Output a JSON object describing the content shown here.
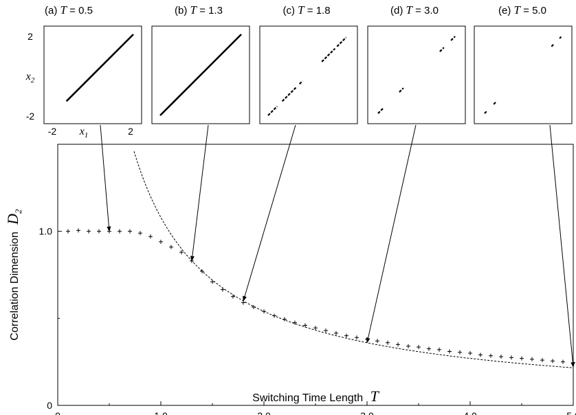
{
  "chart_data": [
    {
      "panel_id": "a",
      "type": "scatter",
      "label_prefix": "(a) ",
      "label_var": "T",
      "label_value": " = 0.5",
      "T": 0.5,
      "xlim": [
        -2,
        2
      ],
      "ylim": [
        -2,
        2
      ],
      "x_ticks": [
        "-2",
        "2"
      ],
      "y_ticks": [
        "2",
        "-2"
      ],
      "xlabel": "x",
      "xlabel_sub": "1",
      "ylabel": "x",
      "ylabel_sub": "2",
      "segments": [
        [
          -1.3,
          2.0
        ]
      ]
    },
    {
      "panel_id": "b",
      "type": "scatter",
      "label_prefix": "(b) ",
      "label_var": "T",
      "label_value": " = 1.3",
      "T": 1.3,
      "xlim": [
        -2,
        2
      ],
      "ylim": [
        -2,
        2
      ],
      "segments": [
        [
          -2.0,
          2.0
        ]
      ]
    },
    {
      "panel_id": "c",
      "type": "scatter",
      "label_prefix": "(c) ",
      "label_var": "T",
      "label_value": " = 1.8",
      "T": 1.8,
      "xlim": [
        -2,
        2
      ],
      "ylim": [
        -2,
        2
      ],
      "segments": [
        [
          -2.0,
          -1.55
        ],
        [
          -1.3,
          -0.6
        ],
        [
          -0.45,
          -0.3
        ],
        [
          0.65,
          1.3
        ],
        [
          1.4,
          1.85
        ]
      ]
    },
    {
      "panel_id": "d",
      "type": "scatter",
      "label_prefix": "(d) ",
      "label_var": "T",
      "label_value": " = 3.0",
      "T": 3.0,
      "xlim": [
        -2,
        2
      ],
      "ylim": [
        -2,
        2
      ],
      "segments": [
        [
          -1.9,
          -1.65
        ],
        [
          -0.85,
          -0.65
        ],
        [
          1.15,
          1.35
        ],
        [
          1.7,
          1.9
        ]
      ]
    },
    {
      "panel_id": "e",
      "type": "scatter",
      "label_prefix": "(e) ",
      "label_var": "T",
      "label_value": " = 5.0",
      "T": 5.0,
      "xlim": [
        -2,
        2
      ],
      "ylim": [
        -2,
        2
      ],
      "segments": [
        [
          -1.9,
          -1.78
        ],
        [
          -1.45,
          -1.35
        ],
        [
          1.4,
          1.5
        ],
        [
          1.8,
          1.88
        ]
      ]
    },
    {
      "panel_id": "main",
      "type": "scatter",
      "xlabel": "Switching Time Length",
      "xlabel_var": "T",
      "ylabel": "Correlation Dimension",
      "ylabel_var": "D",
      "ylabel_sub": "2",
      "xlim": [
        0,
        5
      ],
      "ylim": [
        0,
        1.5
      ],
      "x_ticks": [
        {
          "v": 0,
          "label": "0"
        },
        {
          "v": 1,
          "label": "1.0"
        },
        {
          "v": 2,
          "label": "2.0"
        },
        {
          "v": 3,
          "label": "3.0"
        },
        {
          "v": 4,
          "label": "4.0"
        },
        {
          "v": 5,
          "label": "5.0"
        }
      ],
      "y_ticks": [
        {
          "v": 0,
          "label": "0"
        },
        {
          "v": 1,
          "label": "1.0"
        }
      ],
      "points": {
        "x": [
          0.1,
          0.2,
          0.3,
          0.4,
          0.5,
          0.6,
          0.7,
          0.8,
          0.9,
          1.0,
          1.1,
          1.2,
          1.3,
          1.4,
          1.5,
          1.6,
          1.7,
          1.8,
          1.9,
          2.0,
          2.1,
          2.2,
          2.3,
          2.4,
          2.5,
          2.6,
          2.7,
          2.8,
          2.9,
          3.0,
          3.1,
          3.2,
          3.3,
          3.4,
          3.5,
          3.6,
          3.7,
          3.8,
          3.9,
          4.0,
          4.1,
          4.2,
          4.3,
          4.4,
          4.5,
          4.6,
          4.7,
          4.8,
          4.9,
          5.0
        ],
        "y": [
          1.0,
          1.005,
          1.0,
          1.0,
          1.0,
          1.0,
          1.0,
          0.99,
          0.97,
          0.94,
          0.91,
          0.88,
          0.83,
          0.77,
          0.71,
          0.665,
          0.625,
          0.59,
          0.565,
          0.54,
          0.515,
          0.495,
          0.475,
          0.46,
          0.445,
          0.43,
          0.415,
          0.4,
          0.39,
          0.38,
          0.37,
          0.36,
          0.35,
          0.34,
          0.335,
          0.325,
          0.32,
          0.31,
          0.305,
          0.3,
          0.29,
          0.285,
          0.28,
          0.275,
          0.27,
          0.265,
          0.26,
          0.255,
          0.25,
          0.245
        ]
      },
      "curve_formula": "D2 = 1.08 / T",
      "curve_coefficient": 1.08,
      "curve_range": [
        0.72,
        5.0
      ]
    }
  ],
  "arrows": [
    {
      "panel": "a",
      "target": {
        "x": 0.5,
        "y": 1.0
      }
    },
    {
      "panel": "b",
      "target": {
        "x": 1.3,
        "y": 0.83
      }
    },
    {
      "panel": "c",
      "target": {
        "x": 1.8,
        "y": 0.6
      }
    },
    {
      "panel": "d",
      "target": {
        "x": 3.0,
        "y": 0.36
      }
    },
    {
      "panel": "e",
      "target": {
        "x": 5.0,
        "y": 0.22
      }
    }
  ]
}
